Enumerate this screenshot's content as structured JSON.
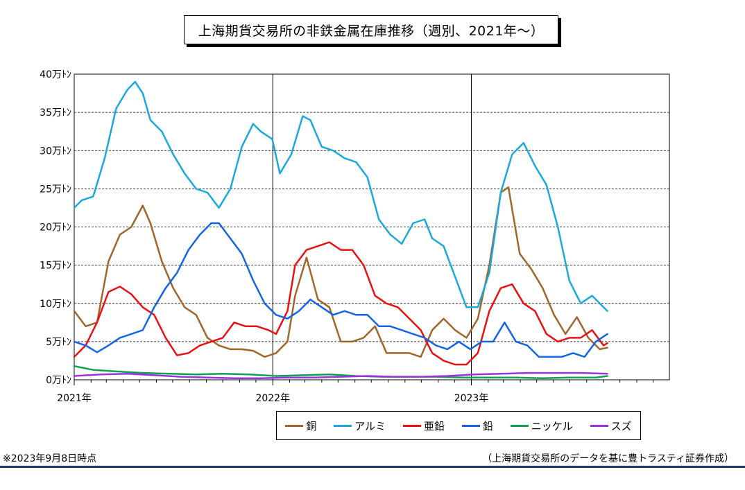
{
  "title": "上海期貨交易所の非鉄金属在庫推移（週別、2021年～）",
  "note_left": "※2023年9月8日時点",
  "note_right": "（上海期貨交易所のデータを基に豊トラスティ証券作成）",
  "chart_data": {
    "type": "line",
    "title": "上海期貨交易所の非鉄金属在庫推移（週別、2021年～）",
    "xlabel": "",
    "ylabel": "",
    "x_start": "2021-01-01",
    "x_end": "2023-12-31",
    "x_tick_labels": [
      "2021年",
      "2022年",
      "2023年"
    ],
    "ylim": [
      0,
      40
    ],
    "y_tick_labels": [
      "0万ﾄﾝ",
      "5万ﾄﾝ",
      "10万ﾄﾝ",
      "15万ﾄﾝ",
      "20万ﾄﾝ",
      "25万ﾄﾝ",
      "30万ﾄﾝ",
      "35万ﾄﾝ",
      "40万ﾄﾝ"
    ],
    "grid": "dashed-horizontal",
    "legend": "bottom",
    "series": [
      {
        "name": "銅",
        "color": "#a0652a",
        "points": [
          [
            "2021-01-01",
            9.0
          ],
          [
            "2021-01-22",
            7.0
          ],
          [
            "2021-02-12",
            7.5
          ],
          [
            "2021-03-05",
            15.5
          ],
          [
            "2021-03-26",
            19.0
          ],
          [
            "2021-04-16",
            20.0
          ],
          [
            "2021-05-07",
            22.8
          ],
          [
            "2021-05-21",
            20.5
          ],
          [
            "2021-06-11",
            15.5
          ],
          [
            "2021-07-02",
            12.0
          ],
          [
            "2021-07-23",
            9.5
          ],
          [
            "2021-08-13",
            8.5
          ],
          [
            "2021-09-03",
            5.5
          ],
          [
            "2021-09-24",
            4.5
          ],
          [
            "2021-10-15",
            4.0
          ],
          [
            "2021-11-05",
            4.0
          ],
          [
            "2021-11-26",
            3.8
          ],
          [
            "2021-12-17",
            3.0
          ],
          [
            "2022-01-07",
            3.5
          ],
          [
            "2022-01-28",
            5.0
          ],
          [
            "2022-02-11",
            11.0
          ],
          [
            "2022-03-04",
            16.0
          ],
          [
            "2022-03-25",
            10.5
          ],
          [
            "2022-04-15",
            9.5
          ],
          [
            "2022-05-06",
            5.0
          ],
          [
            "2022-05-27",
            5.0
          ],
          [
            "2022-06-17",
            5.5
          ],
          [
            "2022-07-08",
            7.0
          ],
          [
            "2022-07-29",
            3.5
          ],
          [
            "2022-08-19",
            3.5
          ],
          [
            "2022-09-09",
            3.5
          ],
          [
            "2022-09-30",
            3.0
          ],
          [
            "2022-10-21",
            6.5
          ],
          [
            "2022-11-11",
            8.0
          ],
          [
            "2022-12-02",
            6.5
          ],
          [
            "2022-12-23",
            5.5
          ],
          [
            "2023-01-13",
            8.0
          ],
          [
            "2023-02-03",
            15.0
          ],
          [
            "2023-02-24",
            24.5
          ],
          [
            "2023-03-10",
            25.2
          ],
          [
            "2023-03-31",
            16.5
          ],
          [
            "2023-04-21",
            14.5
          ],
          [
            "2023-05-12",
            12.0
          ],
          [
            "2023-06-02",
            8.5
          ],
          [
            "2023-06-23",
            6.0
          ],
          [
            "2023-07-14",
            8.2
          ],
          [
            "2023-08-04",
            5.5
          ],
          [
            "2023-08-25",
            4.0
          ],
          [
            "2023-09-08",
            4.2
          ]
        ]
      },
      {
        "name": "アルミ",
        "color": "#1ba8dc",
        "points": [
          [
            "2021-01-01",
            22.5
          ],
          [
            "2021-01-15",
            23.5
          ],
          [
            "2021-02-05",
            24.0
          ],
          [
            "2021-02-26",
            29.0
          ],
          [
            "2021-03-19",
            35.5
          ],
          [
            "2021-04-09",
            38.0
          ],
          [
            "2021-04-23",
            39.0
          ],
          [
            "2021-05-07",
            37.5
          ],
          [
            "2021-05-21",
            34.0
          ],
          [
            "2021-06-11",
            32.5
          ],
          [
            "2021-07-02",
            29.5
          ],
          [
            "2021-07-23",
            27.0
          ],
          [
            "2021-08-13",
            25.0
          ],
          [
            "2021-09-03",
            24.5
          ],
          [
            "2021-09-24",
            22.5
          ],
          [
            "2021-10-15",
            25.0
          ],
          [
            "2021-11-05",
            30.5
          ],
          [
            "2021-11-26",
            33.5
          ],
          [
            "2021-12-10",
            32.5
          ],
          [
            "2021-12-31",
            31.5
          ],
          [
            "2022-01-14",
            27.0
          ],
          [
            "2022-02-04",
            29.5
          ],
          [
            "2022-02-25",
            34.5
          ],
          [
            "2022-03-11",
            34.0
          ],
          [
            "2022-04-01",
            30.5
          ],
          [
            "2022-04-22",
            30.0
          ],
          [
            "2022-05-13",
            29.0
          ],
          [
            "2022-06-03",
            28.5
          ],
          [
            "2022-06-24",
            26.5
          ],
          [
            "2022-07-15",
            21.0
          ],
          [
            "2022-08-05",
            19.0
          ],
          [
            "2022-08-26",
            17.8
          ],
          [
            "2022-09-16",
            20.5
          ],
          [
            "2022-10-07",
            21.0
          ],
          [
            "2022-10-21",
            18.5
          ],
          [
            "2022-11-11",
            17.5
          ],
          [
            "2022-12-02",
            13.5
          ],
          [
            "2022-12-23",
            9.5
          ],
          [
            "2023-01-13",
            9.5
          ],
          [
            "2023-02-03",
            14.0
          ],
          [
            "2023-02-24",
            24.5
          ],
          [
            "2023-03-17",
            29.5
          ],
          [
            "2023-04-07",
            31.0
          ],
          [
            "2023-04-28",
            28.0
          ],
          [
            "2023-05-19",
            25.5
          ],
          [
            "2023-06-09",
            20.0
          ],
          [
            "2023-06-30",
            13.0
          ],
          [
            "2023-07-21",
            10.0
          ],
          [
            "2023-08-11",
            11.0
          ],
          [
            "2023-09-01",
            9.5
          ],
          [
            "2023-09-08",
            9.0
          ]
        ]
      },
      {
        "name": "亜鉛",
        "color": "#e81010",
        "points": [
          [
            "2021-01-01",
            3.0
          ],
          [
            "2021-01-22",
            4.5
          ],
          [
            "2021-02-12",
            7.5
          ],
          [
            "2021-03-05",
            11.5
          ],
          [
            "2021-03-26",
            12.2
          ],
          [
            "2021-04-16",
            11.2
          ],
          [
            "2021-05-07",
            9.5
          ],
          [
            "2021-05-28",
            8.5
          ],
          [
            "2021-06-18",
            5.5
          ],
          [
            "2021-07-09",
            3.2
          ],
          [
            "2021-07-30",
            3.5
          ],
          [
            "2021-08-20",
            4.5
          ],
          [
            "2021-09-10",
            5.0
          ],
          [
            "2021-10-01",
            5.5
          ],
          [
            "2021-10-22",
            7.5
          ],
          [
            "2021-11-12",
            7.0
          ],
          [
            "2021-12-03",
            7.0
          ],
          [
            "2021-12-24",
            6.5
          ],
          [
            "2022-01-07",
            6.0
          ],
          [
            "2022-01-28",
            9.0
          ],
          [
            "2022-02-11",
            15.0
          ],
          [
            "2022-03-04",
            17.0
          ],
          [
            "2022-03-25",
            17.5
          ],
          [
            "2022-04-15",
            18.0
          ],
          [
            "2022-05-06",
            17.0
          ],
          [
            "2022-05-27",
            17.0
          ],
          [
            "2022-06-17",
            15.0
          ],
          [
            "2022-07-08",
            11.0
          ],
          [
            "2022-07-29",
            10.0
          ],
          [
            "2022-08-19",
            9.5
          ],
          [
            "2022-09-09",
            8.0
          ],
          [
            "2022-09-30",
            6.5
          ],
          [
            "2022-10-21",
            3.5
          ],
          [
            "2022-11-11",
            2.5
          ],
          [
            "2022-12-02",
            2.0
          ],
          [
            "2022-12-23",
            2.0
          ],
          [
            "2023-01-13",
            3.5
          ],
          [
            "2023-02-03",
            9.0
          ],
          [
            "2023-02-24",
            12.0
          ],
          [
            "2023-03-17",
            12.5
          ],
          [
            "2023-04-07",
            10.0
          ],
          [
            "2023-04-28",
            9.0
          ],
          [
            "2023-05-19",
            6.0
          ],
          [
            "2023-06-09",
            5.0
          ],
          [
            "2023-06-30",
            5.5
          ],
          [
            "2023-07-21",
            5.5
          ],
          [
            "2023-08-11",
            6.5
          ],
          [
            "2023-09-01",
            4.5
          ],
          [
            "2023-09-08",
            4.8
          ]
        ]
      },
      {
        "name": "鉛",
        "color": "#1464e6",
        "points": [
          [
            "2021-01-01",
            5.0
          ],
          [
            "2021-01-22",
            4.5
          ],
          [
            "2021-02-12",
            3.6
          ],
          [
            "2021-03-05",
            4.5
          ],
          [
            "2021-03-26",
            5.5
          ],
          [
            "2021-04-16",
            6.0
          ],
          [
            "2021-05-07",
            6.5
          ],
          [
            "2021-05-28",
            9.5
          ],
          [
            "2021-06-18",
            12.0
          ],
          [
            "2021-07-09",
            14.0
          ],
          [
            "2021-07-30",
            17.0
          ],
          [
            "2021-08-20",
            19.0
          ],
          [
            "2021-09-10",
            20.5
          ],
          [
            "2021-09-24",
            20.5
          ],
          [
            "2021-10-15",
            18.5
          ],
          [
            "2021-11-05",
            16.5
          ],
          [
            "2021-11-26",
            13.0
          ],
          [
            "2021-12-17",
            10.0
          ],
          [
            "2022-01-07",
            8.5
          ],
          [
            "2022-01-28",
            8.0
          ],
          [
            "2022-02-18",
            9.0
          ],
          [
            "2022-03-11",
            10.5
          ],
          [
            "2022-04-01",
            9.5
          ],
          [
            "2022-04-22",
            8.5
          ],
          [
            "2022-05-13",
            9.0
          ],
          [
            "2022-06-03",
            8.5
          ],
          [
            "2022-06-24",
            8.5
          ],
          [
            "2022-07-15",
            7.0
          ],
          [
            "2022-08-05",
            7.0
          ],
          [
            "2022-08-26",
            6.5
          ],
          [
            "2022-09-16",
            6.0
          ],
          [
            "2022-10-07",
            5.5
          ],
          [
            "2022-10-28",
            4.5
          ],
          [
            "2022-11-18",
            4.0
          ],
          [
            "2022-12-09",
            5.0
          ],
          [
            "2022-12-30",
            4.0
          ],
          [
            "2023-01-20",
            5.0
          ],
          [
            "2023-02-10",
            5.0
          ],
          [
            "2023-03-03",
            7.5
          ],
          [
            "2023-03-24",
            5.0
          ],
          [
            "2023-04-14",
            4.5
          ],
          [
            "2023-05-05",
            3.0
          ],
          [
            "2023-05-26",
            3.0
          ],
          [
            "2023-06-16",
            3.0
          ],
          [
            "2023-07-07",
            3.5
          ],
          [
            "2023-07-28",
            3.0
          ],
          [
            "2023-08-18",
            5.0
          ],
          [
            "2023-09-08",
            6.0
          ]
        ]
      },
      {
        "name": "ニッケル",
        "color": "#10a050",
        "points": [
          [
            "2021-01-01",
            1.8
          ],
          [
            "2021-02-05",
            1.3
          ],
          [
            "2021-03-19",
            1.1
          ],
          [
            "2021-05-07",
            0.9
          ],
          [
            "2021-06-25",
            0.8
          ],
          [
            "2021-08-13",
            0.7
          ],
          [
            "2021-10-01",
            0.8
          ],
          [
            "2021-11-19",
            0.7
          ],
          [
            "2022-01-07",
            0.5
          ],
          [
            "2022-02-25",
            0.6
          ],
          [
            "2022-04-15",
            0.7
          ],
          [
            "2022-06-03",
            0.5
          ],
          [
            "2022-07-22",
            0.4
          ],
          [
            "2022-09-09",
            0.4
          ],
          [
            "2022-10-28",
            0.4
          ],
          [
            "2022-12-16",
            0.3
          ],
          [
            "2023-02-03",
            0.3
          ],
          [
            "2023-03-24",
            0.3
          ],
          [
            "2023-05-12",
            0.2
          ],
          [
            "2023-06-30",
            0.3
          ],
          [
            "2023-08-18",
            0.3
          ],
          [
            "2023-09-08",
            0.5
          ]
        ]
      },
      {
        "name": "スズ",
        "color": "#9933dd",
        "points": [
          [
            "2021-01-01",
            0.5
          ],
          [
            "2021-02-19",
            0.7
          ],
          [
            "2021-04-09",
            0.8
          ],
          [
            "2021-05-28",
            0.6
          ],
          [
            "2021-07-16",
            0.4
          ],
          [
            "2021-09-03",
            0.3
          ],
          [
            "2021-10-22",
            0.2
          ],
          [
            "2021-12-10",
            0.2
          ],
          [
            "2022-01-28",
            0.3
          ],
          [
            "2022-03-18",
            0.3
          ],
          [
            "2022-05-06",
            0.4
          ],
          [
            "2022-06-24",
            0.5
          ],
          [
            "2022-08-12",
            0.4
          ],
          [
            "2022-09-30",
            0.4
          ],
          [
            "2022-11-18",
            0.5
          ],
          [
            "2023-01-06",
            0.7
          ],
          [
            "2023-02-24",
            0.8
          ],
          [
            "2023-04-14",
            0.9
          ],
          [
            "2023-06-02",
            0.9
          ],
          [
            "2023-07-21",
            0.9
          ],
          [
            "2023-09-08",
            0.8
          ]
        ]
      }
    ]
  }
}
